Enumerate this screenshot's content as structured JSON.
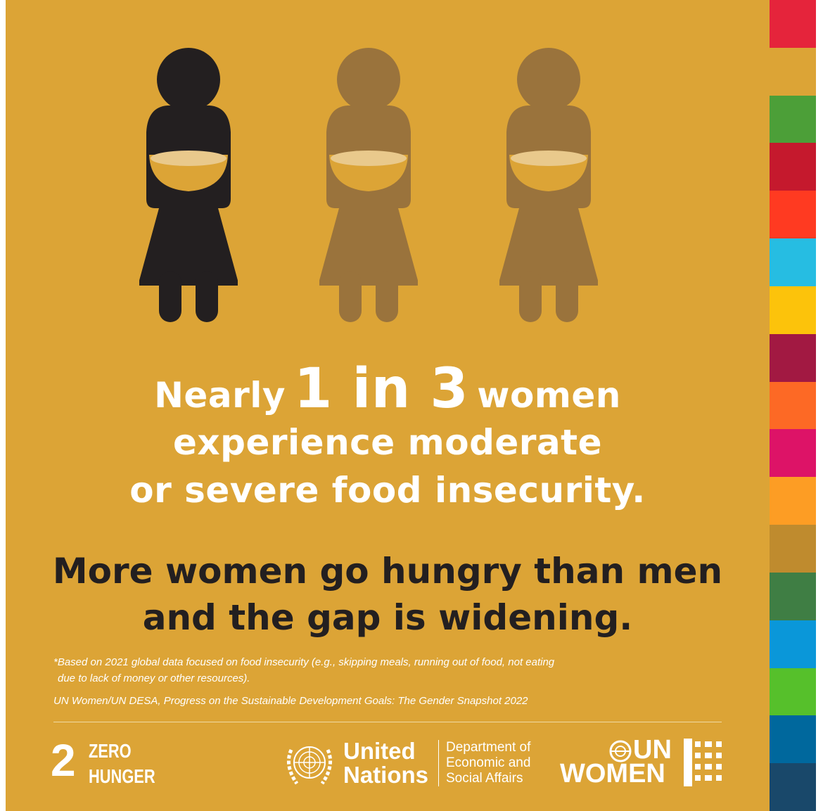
{
  "figures": [
    {
      "name": "woman-figure-dark",
      "color": "#231f20",
      "bowl_color": "#dca436",
      "bowl_rim": "#e9c98c"
    },
    {
      "name": "woman-figure-brown",
      "color": "#9a733c",
      "bowl_color": "#dca436",
      "bowl_rim": "#e9c98c"
    },
    {
      "name": "woman-figure-brown",
      "color": "#9a733c",
      "bowl_color": "#dca436",
      "bowl_rim": "#e9c98c"
    }
  ],
  "headline": {
    "nearly": "Nearly",
    "big_number": "1 in 3",
    "women": "women",
    "line2": "experience moderate",
    "line3": "or severe food insecurity."
  },
  "tagline": {
    "line1": "More women go hungry than men",
    "line2": "and the gap is widening."
  },
  "footnote": {
    "line1": "*Based on 2021 global data focused on food insecurity (e.g., skipping meals, running out of food, not eating",
    "line2": "due to lack of money or other resources).",
    "source": "UN Women/UN DESA, Progress on the Sustainable Development Goals: The Gender Snapshot 2022"
  },
  "sdg": {
    "number": "2",
    "line1": "ZERO",
    "line2": "HUNGER"
  },
  "un": {
    "line1": "United",
    "line2": "Nations"
  },
  "desa": {
    "line1": "Department of",
    "line2": "Economic and",
    "line3": "Social Affairs"
  },
  "unwomen": {
    "line1": "UN",
    "line2": "WOMEN"
  },
  "stripe_colors": [
    "#e5243b",
    "#dca436",
    "#4c9f38",
    "#c5192d",
    "#ff3a21",
    "#26bde2",
    "#fcc30b",
    "#a21942",
    "#fd6925",
    "#dd1367",
    "#fd9d24",
    "#bf8b2e",
    "#3f7e44",
    "#0a97d9",
    "#56c02b",
    "#00689d",
    "#19486a"
  ],
  "colors": {
    "background": "#dca436",
    "headline": "#ffffff",
    "tagline": "#231f20"
  }
}
